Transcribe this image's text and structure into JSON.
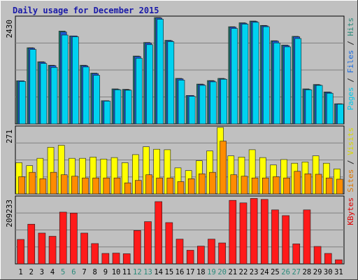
{
  "chart_data": {
    "type": "bar",
    "title": "Daily usage for December 2015",
    "categories": [
      "1",
      "2",
      "3",
      "4",
      "5",
      "6",
      "7",
      "8",
      "9",
      "10",
      "11",
      "12",
      "13",
      "14",
      "15",
      "16",
      "17",
      "18",
      "19",
      "20",
      "21",
      "22",
      "23",
      "24",
      "25",
      "26",
      "27",
      "28",
      "29",
      "30",
      "31"
    ],
    "weekend_days": [
      "5",
      "6",
      "12",
      "13",
      "19",
      "20",
      "26",
      "27"
    ],
    "panels": [
      {
        "name": "pages-files-hits",
        "max_label": "2430",
        "ymax": 2430,
        "right_labels": [
          {
            "text": "Pages",
            "color": "#00c8e8"
          },
          {
            "text": " / ",
            "color": "#222222"
          },
          {
            "text": "Files",
            "color": "#1e6ee0"
          },
          {
            "text": " / ",
            "color": "#222222"
          },
          {
            "text": "Hits",
            "color": "#2a8a7a"
          }
        ],
        "series": [
          {
            "name": "Hits",
            "color": "#1e8272",
            "values": [
              985,
              1740,
              1420,
              1340,
              2120,
              2010,
              1340,
              1160,
              530,
              800,
              790,
              1550,
              1860,
              2430,
              1910,
              1040,
              650,
              910,
              990,
              1040,
              2220,
              2310,
              2350,
              2250,
              1900,
              1800,
              2000,
              800,
              900,
              730,
              460
            ]
          },
          {
            "name": "Files",
            "color": "#1e5ad2",
            "values": [
              985,
              1730,
              1410,
              1330,
              2100,
              2010,
              1330,
              1150,
              530,
              790,
              780,
              1540,
              1850,
              2420,
              1900,
              1030,
              650,
              900,
              980,
              1030,
              2210,
              2300,
              2340,
              2240,
              1890,
              1790,
              1990,
              790,
              890,
              720,
              460
            ]
          },
          {
            "name": "Pages",
            "color": "#00d2f0",
            "values": [
              970,
              1700,
              1380,
              1290,
              2030,
              1990,
              1300,
              1110,
              520,
              780,
              770,
              1500,
              1810,
              2390,
              1880,
              1000,
              630,
              880,
              960,
              1020,
              2180,
              2280,
              2320,
              2220,
              1850,
              1760,
              1950,
              780,
              880,
              700,
              450
            ]
          }
        ]
      },
      {
        "name": "visits-sites",
        "max_label": "271",
        "ymax": 271,
        "right_labels": [
          {
            "text": "Sites",
            "color": "#e07800"
          },
          {
            "text": " / ",
            "color": "#222222"
          },
          {
            "text": "Visits",
            "color": "#d8d800"
          }
        ],
        "series": [
          {
            "name": "Visits",
            "color": "#ffff00",
            "values": [
              127,
              115,
              145,
              190,
              198,
              145,
              145,
              150,
              142,
              148,
              127,
              160,
              192,
              182,
              180,
              106,
              95,
              135,
              175,
              271,
              155,
              150,
              180,
              148,
              118,
              140,
              125,
              130,
              155,
              125,
              102
            ]
          },
          {
            "name": "Sites",
            "color": "#ff8c00",
            "values": [
              70,
              88,
              62,
              88,
              78,
              72,
              65,
              65,
              65,
              65,
              45,
              55,
              78,
              65,
              65,
              50,
              62,
              82,
              88,
              215,
              78,
              72,
              65,
              65,
              70,
              65,
              92,
              82,
              80,
              65,
              60
            ]
          }
        ]
      },
      {
        "name": "kbytes",
        "max_label": "209233",
        "ymax": 209233,
        "right_labels": [
          {
            "text": "KBytes",
            "color": "#e00000"
          }
        ],
        "series": [
          {
            "name": "KBytes",
            "color": "#ff1a1a",
            "values": [
              77000,
              125000,
              97000,
              87000,
              163000,
              160000,
              97000,
              64000,
              33000,
              34000,
              32000,
              105000,
              133000,
              196000,
              130000,
              78000,
              43000,
              56000,
              78000,
              66000,
              200000,
              192000,
              206000,
              203000,
              170000,
              152000,
              63000,
              170000,
              55000,
              33000,
              13000
            ]
          }
        ]
      }
    ]
  }
}
